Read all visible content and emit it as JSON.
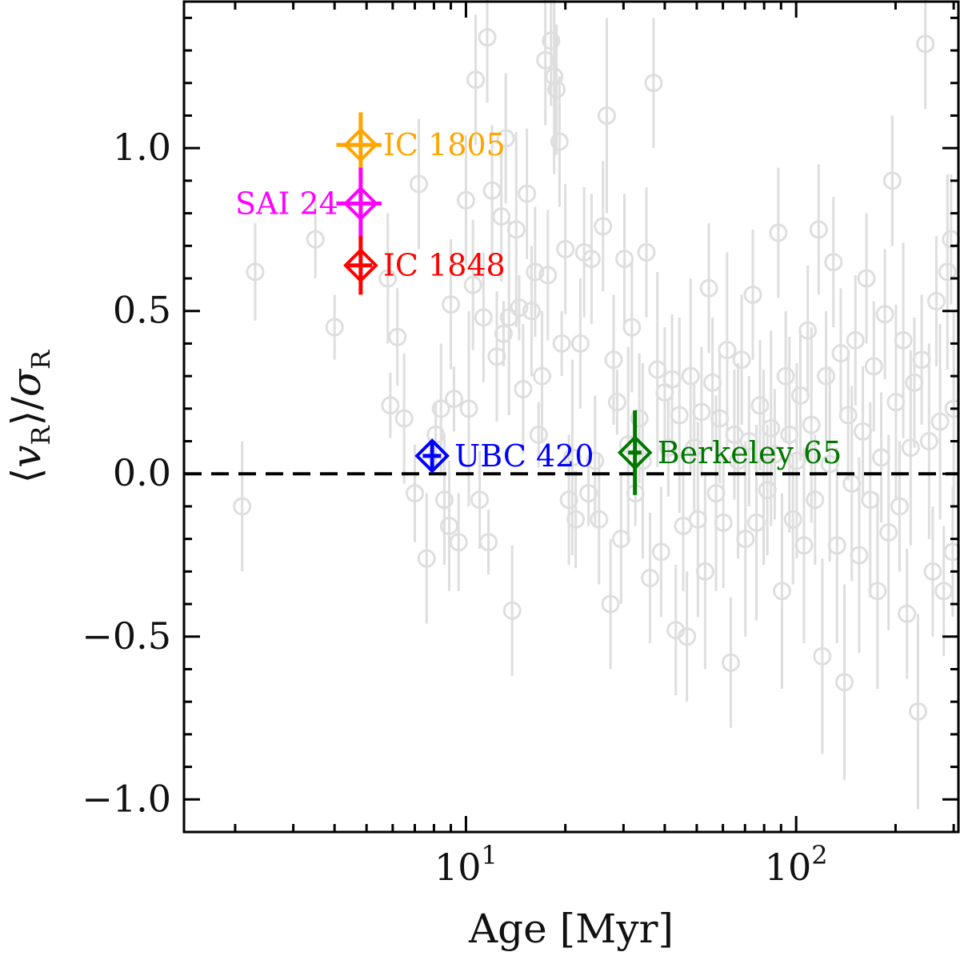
{
  "chart_data": {
    "type": "scatter",
    "title": "",
    "xlabel": "Age [Myr]",
    "ylabel": "⟨v_R⟩/σ_R",
    "ylabel_parts": {
      "open": "⟨",
      "v": "v",
      "vsub": "R",
      "close": "⟩/",
      "sigma": "σ",
      "sigmasub": "R"
    },
    "xscale": "log",
    "xlim": [
      1.4,
      310
    ],
    "ylim": [
      -1.1,
      1.45
    ],
    "yticks": [
      {
        "value": -1.0,
        "label": "−1.0"
      },
      {
        "value": -0.5,
        "label": "−0.5"
      },
      {
        "value": 0.0,
        "label": "0.0"
      },
      {
        "value": 0.5,
        "label": "0.5"
      },
      {
        "value": 1.0,
        "label": "1.0"
      }
    ],
    "xticks_major": [
      {
        "value": 10,
        "base": "10",
        "exp": "1"
      },
      {
        "value": 100,
        "base": "10",
        "exp": "2"
      }
    ],
    "reference_line": {
      "y": 0.0,
      "style": "dashed",
      "color": "#000000"
    },
    "background_series": {
      "name": "clusters",
      "color": "#dedede",
      "marker": "open-circle",
      "points": [
        [
          2.1,
          -0.1,
          0.2
        ],
        [
          2.3,
          0.62,
          0.15
        ],
        [
          3.5,
          0.72,
          0.12
        ],
        [
          4.0,
          0.45,
          0.1
        ],
        [
          5.8,
          0.6,
          0.2
        ],
        [
          5.9,
          0.21,
          0.1
        ],
        [
          6.2,
          0.42,
          0.15
        ],
        [
          6.5,
          0.17,
          0.2
        ],
        [
          7.0,
          -0.06,
          0.15
        ],
        [
          7.2,
          0.89,
          0.2
        ],
        [
          7.6,
          -0.26,
          0.2
        ],
        [
          8.1,
          0.12,
          0.1
        ],
        [
          8.4,
          0.2,
          0.2
        ],
        [
          8.6,
          -0.08,
          0.2
        ],
        [
          8.9,
          -0.16,
          0.2
        ],
        [
          9.0,
          0.52,
          0.2
        ],
        [
          9.2,
          0.23,
          0.1
        ],
        [
          9.5,
          -0.21,
          0.15
        ],
        [
          10.0,
          0.84,
          0.2
        ],
        [
          10.2,
          0.2,
          0.3
        ],
        [
          10.5,
          0.58,
          0.2
        ],
        [
          10.7,
          1.21,
          0.2
        ],
        [
          11.0,
          -0.08,
          0.15
        ],
        [
          11.3,
          0.48,
          0.2
        ],
        [
          11.6,
          1.34,
          0.2
        ],
        [
          11.7,
          -0.21,
          0.1
        ],
        [
          12.0,
          0.87,
          0.2
        ],
        [
          12.4,
          0.36,
          0.2
        ],
        [
          12.8,
          0.79,
          0.2
        ],
        [
          13.0,
          0.43,
          0.1
        ],
        [
          13.2,
          1.03,
          0.2
        ],
        [
          13.5,
          0.48,
          0.3
        ],
        [
          13.8,
          -0.42,
          0.2
        ],
        [
          14.2,
          0.75,
          0.3
        ],
        [
          14.5,
          0.51,
          0.1
        ],
        [
          14.9,
          0.26,
          0.2
        ],
        [
          15.3,
          0.86,
          0.2
        ],
        [
          15.8,
          0.5,
          0.2
        ],
        [
          16.2,
          0.62,
          0.2
        ],
        [
          16.6,
          0.12,
          0.1
        ],
        [
          17.0,
          0.3,
          0.2
        ],
        [
          17.4,
          1.27,
          0.2
        ],
        [
          17.7,
          0.61,
          0.2
        ],
        [
          18.1,
          1.33,
          0.2
        ],
        [
          18.5,
          1.22,
          0.3
        ],
        [
          18.8,
          1.18,
          0.2
        ],
        [
          19.2,
          1.02,
          0.2
        ],
        [
          19.5,
          0.4,
          0.1
        ],
        [
          20.0,
          0.69,
          0.2
        ],
        [
          20.5,
          -0.08,
          0.2
        ],
        [
          21.0,
          0.05,
          0.3
        ],
        [
          21.5,
          -0.14,
          0.15
        ],
        [
          22.2,
          0.4,
          0.2
        ],
        [
          22.8,
          0.68,
          0.2
        ],
        [
          23.5,
          -0.06,
          0.1
        ],
        [
          24.0,
          0.66,
          0.2
        ],
        [
          24.6,
          0.04,
          0.2
        ],
        [
          25.3,
          -0.14,
          0.2
        ],
        [
          26.0,
          0.76,
          0.2
        ],
        [
          26.7,
          1.1,
          0.3
        ],
        [
          27.4,
          -0.4,
          0.2
        ],
        [
          28.0,
          0.35,
          0.2
        ],
        [
          28.7,
          0.22,
          0.1
        ],
        [
          29.5,
          -0.2,
          0.2
        ],
        [
          30.2,
          0.66,
          0.2
        ],
        [
          31.0,
          0.09,
          0.3
        ],
        [
          31.8,
          0.45,
          0.2
        ],
        [
          32.6,
          -0.06,
          0.1
        ],
        [
          33.5,
          0.17,
          0.2
        ],
        [
          34.3,
          0.04,
          0.3
        ],
        [
          35.2,
          0.68,
          0.2
        ],
        [
          36.1,
          -0.32,
          0.2
        ],
        [
          37.0,
          1.2,
          0.2
        ],
        [
          38.0,
          0.32,
          0.3
        ],
        [
          39.0,
          -0.24,
          0.2
        ],
        [
          40.0,
          0.25,
          0.2
        ],
        [
          41.0,
          0.08,
          0.15
        ],
        [
          42.1,
          0.29,
          0.2
        ],
        [
          43.2,
          -0.48,
          0.2
        ],
        [
          44.3,
          0.18,
          0.3
        ],
        [
          45.5,
          -0.16,
          0.2
        ],
        [
          46.7,
          -0.5,
          0.2
        ],
        [
          47.9,
          0.3,
          0.3
        ],
        [
          49.1,
          0.08,
          0.2
        ],
        [
          50.4,
          -0.14,
          0.3
        ],
        [
          51.7,
          0.19,
          0.2
        ],
        [
          53.0,
          -0.3,
          0.3
        ],
        [
          54.4,
          0.57,
          0.2
        ],
        [
          55.8,
          0.28,
          0.2
        ],
        [
          57.2,
          -0.06,
          0.3
        ],
        [
          58.7,
          0.17,
          0.2
        ],
        [
          60.2,
          -0.15,
          0.2
        ],
        [
          61.8,
          0.38,
          0.3
        ],
        [
          63.4,
          -0.58,
          0.2
        ],
        [
          65.0,
          0.12,
          0.2
        ],
        [
          66.7,
          0.04,
          0.3
        ],
        [
          68.4,
          0.35,
          0.2
        ],
        [
          70.2,
          -0.2,
          0.3
        ],
        [
          72.0,
          0.1,
          0.2
        ],
        [
          73.9,
          0.55,
          0.2
        ],
        [
          75.8,
          -0.15,
          0.3
        ],
        [
          77.7,
          0.21,
          0.2
        ],
        [
          79.7,
          0.02,
          0.3
        ],
        [
          81.8,
          -0.05,
          0.2
        ],
        [
          83.9,
          0.14,
          0.3
        ],
        [
          86.1,
          0.06,
          0.2
        ],
        [
          88.3,
          0.74,
          0.2
        ],
        [
          90.6,
          -0.36,
          0.3
        ],
        [
          93.0,
          0.3,
          0.2
        ],
        [
          95.4,
          0.12,
          0.3
        ],
        [
          97.8,
          -0.14,
          0.2
        ],
        [
          100.4,
          0.04,
          0.3
        ],
        [
          103.0,
          0.24,
          0.2
        ],
        [
          105.6,
          -0.22,
          0.3
        ],
        [
          108.4,
          0.44,
          0.2
        ],
        [
          111.2,
          0.15,
          0.3
        ],
        [
          114.1,
          -0.08,
          0.2
        ],
        [
          117.0,
          0.75,
          0.2
        ],
        [
          120.0,
          -0.56,
          0.3
        ],
        [
          123.2,
          0.3,
          0.2
        ],
        [
          126.4,
          0.03,
          0.3
        ],
        [
          129.7,
          0.65,
          0.2
        ],
        [
          133.0,
          -0.22,
          0.3
        ],
        [
          136.5,
          0.37,
          0.2
        ],
        [
          140.0,
          -0.64,
          0.3
        ],
        [
          143.7,
          0.18,
          0.2
        ],
        [
          147.4,
          -0.03,
          0.3
        ],
        [
          151.2,
          0.41,
          0.2
        ],
        [
          155.2,
          -0.25,
          0.3
        ],
        [
          159.2,
          0.13,
          0.2
        ],
        [
          163.3,
          0.6,
          0.2
        ],
        [
          167.6,
          -0.08,
          0.3
        ],
        [
          171.9,
          0.33,
          0.2
        ],
        [
          176.4,
          -0.36,
          0.3
        ],
        [
          181.0,
          0.05,
          0.2
        ],
        [
          185.7,
          0.49,
          0.2
        ],
        [
          190.5,
          -0.18,
          0.3
        ],
        [
          195.5,
          0.9,
          0.2
        ],
        [
          200.5,
          0.22,
          0.3
        ],
        [
          205.7,
          -0.1,
          0.2
        ],
        [
          211.1,
          0.41,
          0.3
        ],
        [
          216.6,
          -0.43,
          0.2
        ],
        [
          222.2,
          0.08,
          0.3
        ],
        [
          228.0,
          0.28,
          0.2
        ],
        [
          233.9,
          -0.73,
          0.3
        ],
        [
          240.0,
          0.35,
          0.2
        ],
        [
          246.2,
          1.32,
          0.2
        ],
        [
          252.6,
          0.1,
          0.3
        ],
        [
          259.2,
          -0.3,
          0.2
        ],
        [
          265.9,
          0.53,
          0.2
        ],
        [
          272.8,
          0.16,
          0.3
        ],
        [
          279.9,
          -0.36,
          0.2
        ],
        [
          287.2,
          0.62,
          0.3
        ],
        [
          294.6,
          0.72,
          0.2
        ],
        [
          298.0,
          -0.24,
          0.2
        ],
        [
          300.0,
          0.2,
          0.3
        ]
      ]
    },
    "highlighted": [
      {
        "name": "IC 1805",
        "label": "IC 1805",
        "x": 4.8,
        "y": 1.01,
        "yerr": 0.1,
        "xerr": [
          0.75,
          0.75
        ],
        "color": "#ffa500",
        "label_side": "right"
      },
      {
        "name": "SAI 24",
        "label": "SAI 24",
        "x": 4.8,
        "y": 0.83,
        "yerr": 0.11,
        "xerr": [
          0.75,
          0.75
        ],
        "color": "#ff00ff",
        "label_side": "left"
      },
      {
        "name": "IC 1848",
        "label": "IC 1848",
        "x": 4.8,
        "y": 0.64,
        "yerr": 0.09,
        "xerr": [
          0.4,
          0.4
        ],
        "color": "#ff0000",
        "label_side": "right"
      },
      {
        "name": "UBC 420",
        "label": "UBC 420",
        "x": 7.9,
        "y": 0.055,
        "yerr": 0.04,
        "xerr": [
          0.5,
          0.5
        ],
        "color": "#0000ff",
        "label_side": "right"
      },
      {
        "name": "Berkeley 65",
        "label": "Berkeley 65",
        "x": 32.5,
        "y": 0.065,
        "yerr": 0.13,
        "xerr": [
          1.5,
          1.5
        ],
        "color": "#007700",
        "label_side": "right"
      }
    ]
  }
}
